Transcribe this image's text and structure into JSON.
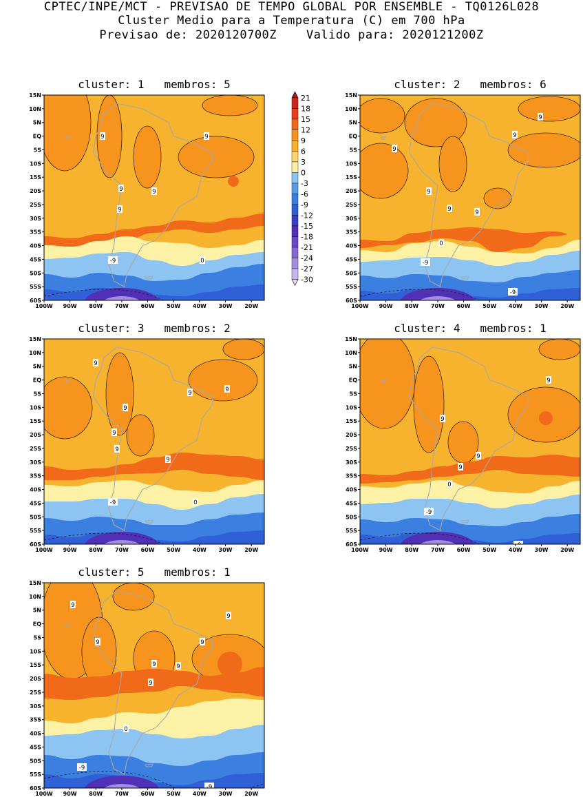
{
  "header": {
    "line1": "CPTEC/INPE/MCT - PREVISAO DE TEMPO GLOBAL POR ENSEMBLE - TQ0126L028",
    "line2": "Cluster Medio para a Temperatura (C) em 700 hPa",
    "line3": "Previsao de: 2020120700Z    Valido para: 2020121200Z"
  },
  "axes": {
    "lat_labels": [
      "15N",
      "10N",
      "5N",
      "EQ",
      "5S",
      "10S",
      "15S",
      "20S",
      "25S",
      "30S",
      "35S",
      "40S",
      "45S",
      "50S",
      "55S",
      "60S"
    ],
    "lon_labels": [
      "100W",
      "90W",
      "80W",
      "70W",
      "60W",
      "50W",
      "40W",
      "30W",
      "20W"
    ]
  },
  "colorbar": {
    "levels": [
      "21",
      "18",
      "15",
      "12",
      "9",
      "6",
      "3",
      "0",
      "-3",
      "-6",
      "-9",
      "-12",
      "-15",
      "-18",
      "-21",
      "-24",
      "-27",
      "-30"
    ],
    "colors": [
      "#a01818",
      "#c82820",
      "#e8401c",
      "#f06a1a",
      "#f7941d",
      "#f7b32e",
      "#fcd66d",
      "#fdf1a5",
      "#8ec4f2",
      "#5a9ee8",
      "#3b7fe0",
      "#2f60d6",
      "#3540c2",
      "#5030b4",
      "#6a48c8",
      "#8668d6",
      "#a48ee2",
      "#c8b8f0",
      "#e6defa"
    ]
  },
  "panels": [
    {
      "title": "cluster: 1   membros: 5",
      "contour_labels": [
        "9",
        "9",
        "9",
        "9",
        "9",
        "0",
        "-9"
      ]
    },
    {
      "title": "cluster: 2   membros: 6",
      "contour_labels": [
        "9",
        "9",
        "9",
        "9",
        "9",
        "9",
        "0",
        "-9",
        "-9"
      ]
    },
    {
      "title": "cluster: 3   membros: 2",
      "contour_labels": [
        "9",
        "9",
        "9",
        "9",
        "9",
        "9",
        "9",
        "0",
        "-9"
      ]
    },
    {
      "title": "cluster: 4   membros: 1",
      "contour_labels": [
        "9",
        "9",
        "9",
        "9",
        "0",
        "-9",
        "-9"
      ]
    },
    {
      "title": "cluster: 5   membros: 1",
      "contour_labels": [
        "9",
        "9",
        "9",
        "9",
        "9",
        "9",
        "9",
        "0",
        "-9",
        "-9"
      ]
    }
  ]
}
